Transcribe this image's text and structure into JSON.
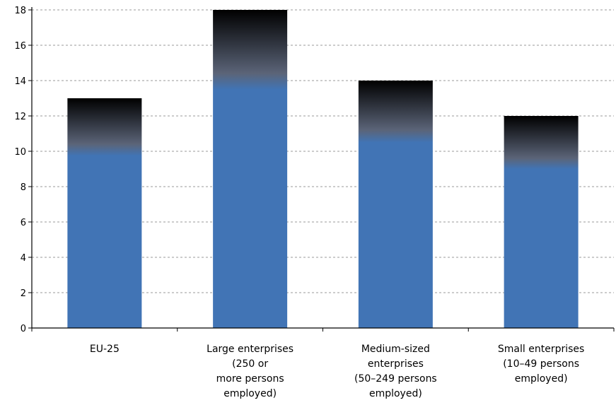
{
  "chart_data": {
    "type": "bar",
    "categories": [
      [
        "EU-25"
      ],
      [
        "Large enterprises",
        "(250 or",
        "more persons",
        "employed)"
      ],
      [
        "Medium-sized",
        "enterprises",
        "(50–249 persons",
        "employed)"
      ],
      [
        "Small enterprises",
        "(10–49 persons",
        "employed)"
      ]
    ],
    "values": [
      13,
      18,
      14,
      12
    ],
    "ylim": [
      0,
      18
    ],
    "yticks": [
      0,
      2,
      4,
      6,
      8,
      10,
      12,
      14,
      16,
      18
    ],
    "grid": true,
    "title": "",
    "xlabel": "",
    "ylabel": "",
    "colors": {
      "bar": "#4174b5",
      "bar_top": "#000000",
      "grid": "#999999",
      "axis": "#000000"
    }
  }
}
